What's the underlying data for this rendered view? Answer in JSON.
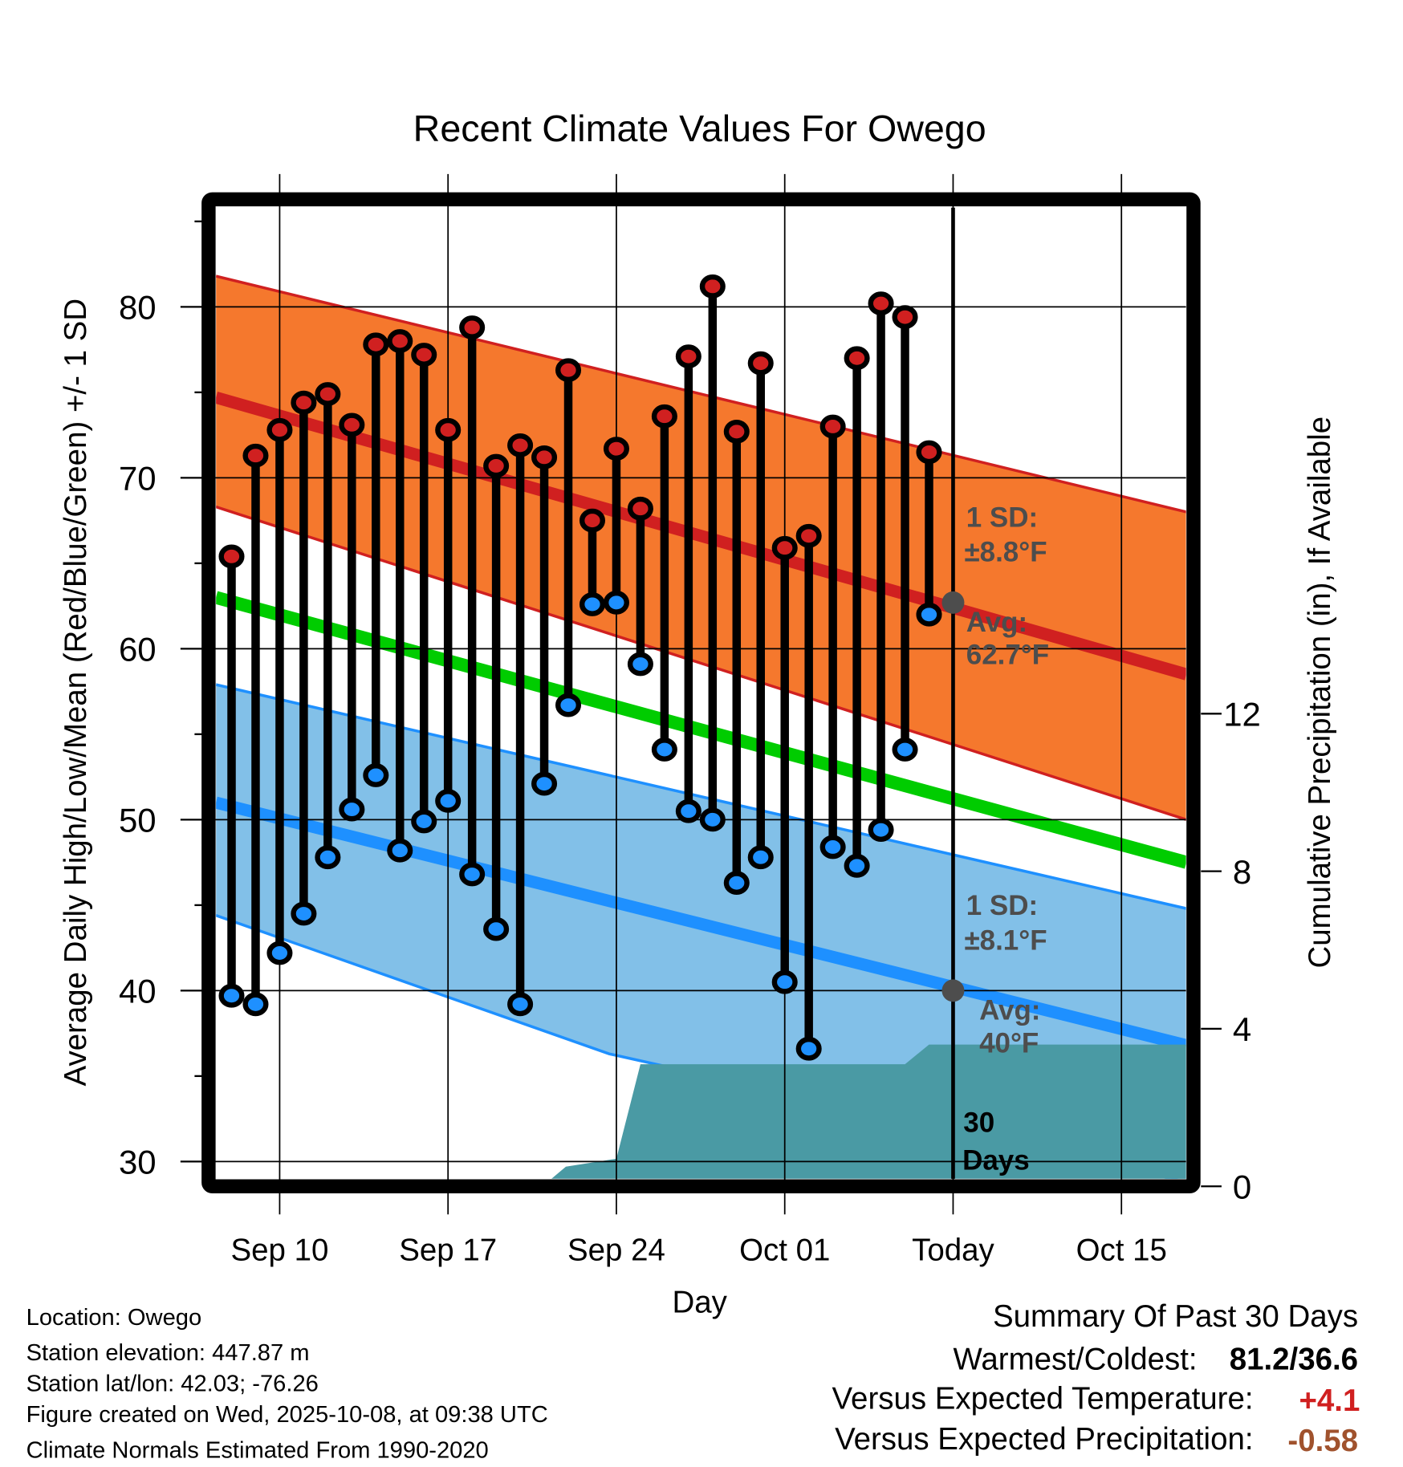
{
  "chart_data": {
    "type": "line",
    "title": "Recent Climate Values For Owego",
    "xlabel": "Day",
    "ylabel": "Average Daily High/Low/Mean (Red/Blue/Green) +/- 1 SD",
    "ylabel_right": "Cumulative Precipitation (in), If Available",
    "ylim": [
      29,
      87.5
    ],
    "ylim_right": [
      0,
      35
    ],
    "x_unit": "days from Sep 10",
    "xlim": [
      -2.65,
      37.7
    ],
    "x_ticks": [
      {
        "x": 0,
        "label": "Sep 10"
      },
      {
        "x": 7,
        "label": "Sep 17"
      },
      {
        "x": 14,
        "label": "Sep 24"
      },
      {
        "x": 21,
        "label": "Oct 01"
      },
      {
        "x": 28,
        "label": "Today"
      },
      {
        "x": 35,
        "label": "Oct 15"
      }
    ],
    "y_ticks": [
      30,
      40,
      50,
      60,
      70,
      80
    ],
    "y_ticks_right": [
      0,
      4,
      8,
      12
    ],
    "grid": true,
    "dates": [
      "Sep 08",
      "Sep 09",
      "Sep 10",
      "Sep 11",
      "Sep 12",
      "Sep 13",
      "Sep 14",
      "Sep 15",
      "Sep 16",
      "Sep 17",
      "Sep 18",
      "Sep 19",
      "Sep 20",
      "Sep 21",
      "Sep 22",
      "Sep 23",
      "Sep 24",
      "Sep 25",
      "Sep 26",
      "Sep 27",
      "Sep 28",
      "Sep 29",
      "Sep 30",
      "Oct 01",
      "Oct 02",
      "Oct 03",
      "Oct 04",
      "Oct 05",
      "Oct 06",
      "Oct 07"
    ],
    "x_start": -2,
    "series": [
      {
        "name": "Daily High",
        "color": "#d02020",
        "values": [
          65.4,
          71.3,
          72.8,
          74.4,
          74.9,
          73.1,
          77.8,
          78.0,
          77.2,
          72.8,
          78.8,
          70.7,
          71.9,
          71.2,
          76.3,
          67.5,
          71.7,
          68.2,
          73.6,
          77.1,
          81.2,
          72.7,
          76.7,
          65.9,
          66.6,
          73.0,
          77.0,
          80.2,
          79.4,
          71.5
        ]
      },
      {
        "name": "Daily Low",
        "color": "#1e90ff",
        "values": [
          39.7,
          39.2,
          42.2,
          44.5,
          47.8,
          50.6,
          52.6,
          48.2,
          49.9,
          51.1,
          46.8,
          43.6,
          39.2,
          52.1,
          56.7,
          62.6,
          62.7,
          59.1,
          54.1,
          50.5,
          50.0,
          46.3,
          47.8,
          40.5,
          36.6,
          48.4,
          47.3,
          49.4,
          54.1,
          62.0
        ]
      }
    ],
    "normals": {
      "high": {
        "color": "#d02020",
        "band_color": "#f5782d",
        "mean": [
          [
            -2.65,
            74.7
          ],
          [
            37.7,
            58.5
          ]
        ],
        "upper": [
          [
            -2.65,
            81.8
          ],
          [
            37.7,
            68.0
          ]
        ],
        "lower": [
          [
            -2.65,
            68.3
          ],
          [
            37.7,
            50.0
          ]
        ]
      },
      "mean": {
        "color": "#00cc00",
        "mean": [
          [
            -2.65,
            63.0
          ],
          [
            37.7,
            47.5
          ]
        ]
      },
      "low": {
        "color": "#1e90ff",
        "band_color": "#82c0e8",
        "mean": [
          [
            -2.65,
            51.0
          ],
          [
            37.7,
            36.8
          ]
        ],
        "upper": [
          [
            -2.65,
            57.9
          ],
          [
            37.7,
            44.8
          ]
        ],
        "lower": [
          [
            -2.65,
            44.4
          ],
          [
            13.7,
            36.3
          ],
          [
            37.7,
            28.8
          ]
        ]
      }
    },
    "precip": {
      "color": "#4a9aa4",
      "points": [
        [
          -2.65,
          0
        ],
        [
          11.3,
          0
        ],
        [
          11.9,
          0.5
        ],
        [
          14,
          0.7
        ],
        [
          15,
          3.1
        ],
        [
          26,
          3.1
        ],
        [
          27,
          3.6
        ],
        [
          37.7,
          3.6
        ]
      ]
    },
    "annotations": {
      "high_sd_label": "1 SD:",
      "high_sd_value": "±8.8°F",
      "high_avg_label": "Avg:",
      "high_avg_value": "62.7°F",
      "high_avg": 62.7,
      "low_sd_label": "1 SD:",
      "low_sd_value": "±8.1°F",
      "low_avg_label": "Avg:",
      "low_avg_value": "40°F",
      "low_avg": 40,
      "days_label_1": "30",
      "days_label_2": "Days"
    }
  },
  "info": {
    "location": "Location: Owego",
    "elevation": "Station elevation: 447.87 m",
    "latlon": "Station lat/lon: 42.03; -76.26",
    "created": "Figure created on Wed, 2025-10-08, at 09:38 UTC",
    "normals": "Climate Normals Estimated From 1990-2020"
  },
  "summary": {
    "title": "Summary Of Past 30 Days",
    "warmest_label": "Warmest/Coldest:",
    "warmest_value": "81.2/36.6",
    "temp_label": "Versus Expected Temperature:",
    "temp_value": "+4.1",
    "temp_color": "#d02020",
    "precip_label": "Versus Expected Precipitation:",
    "precip_value": "-0.58",
    "precip_color": "#a0522d"
  }
}
